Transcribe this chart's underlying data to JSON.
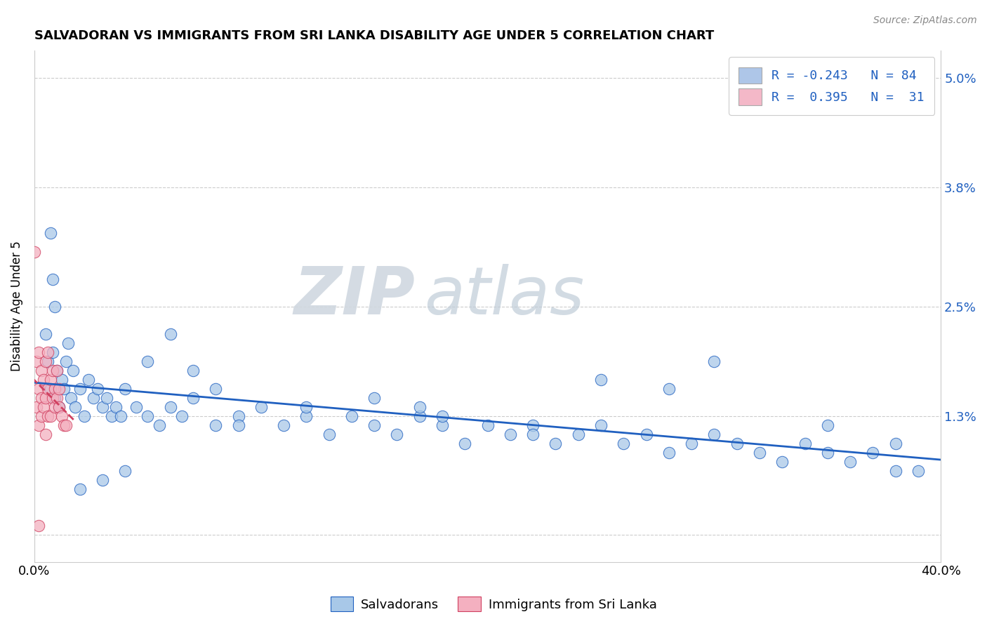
{
  "title": "SALVADORAN VS IMMIGRANTS FROM SRI LANKA DISABILITY AGE UNDER 5 CORRELATION CHART",
  "source_text": "Source: ZipAtlas.com",
  "ylabel": "Disability Age Under 5",
  "watermark_zip": "ZIP",
  "watermark_atlas": "atlas",
  "xmin": 0.0,
  "xmax": 0.4,
  "ymin": -0.003,
  "ymax": 0.053,
  "ytick_vals": [
    0.0,
    0.013,
    0.025,
    0.038,
    0.05
  ],
  "ytick_labels_right": [
    "",
    "1.3%",
    "2.5%",
    "3.8%",
    "5.0%"
  ],
  "xtick_vals": [
    0.0,
    0.4
  ],
  "xtick_labels": [
    "0.0%",
    "40.0%"
  ],
  "legend_R1": "-0.243",
  "legend_N1": "84",
  "legend_R2": " 0.395",
  "legend_N2": " 31",
  "legend_color1": "#aec6e8",
  "legend_color2": "#f4b8c8",
  "legend_labels": [
    "Salvadorans",
    "Immigrants from Sri Lanka"
  ],
  "salvadoran_color": "#a8c8e8",
  "srilanka_color": "#f4b0c0",
  "trendline_blue": "#2060c0",
  "trendline_pink": "#d04060",
  "blue_x": [
    0.005,
    0.006,
    0.007,
    0.008,
    0.009,
    0.01,
    0.011,
    0.012,
    0.013,
    0.014,
    0.015,
    0.016,
    0.017,
    0.018,
    0.02,
    0.022,
    0.024,
    0.026,
    0.028,
    0.03,
    0.032,
    0.034,
    0.036,
    0.038,
    0.04,
    0.045,
    0.05,
    0.055,
    0.06,
    0.065,
    0.07,
    0.08,
    0.09,
    0.1,
    0.11,
    0.12,
    0.13,
    0.14,
    0.15,
    0.16,
    0.17,
    0.18,
    0.19,
    0.2,
    0.21,
    0.22,
    0.23,
    0.24,
    0.25,
    0.26,
    0.27,
    0.28,
    0.29,
    0.3,
    0.31,
    0.32,
    0.33,
    0.34,
    0.35,
    0.36,
    0.37,
    0.38,
    0.39,
    0.007,
    0.008,
    0.009,
    0.05,
    0.06,
    0.07,
    0.08,
    0.25,
    0.28,
    0.3,
    0.35,
    0.38,
    0.15,
    0.18,
    0.22,
    0.12,
    0.09,
    0.04,
    0.03,
    0.02,
    0.17
  ],
  "blue_y": [
    0.022,
    0.019,
    0.016,
    0.02,
    0.015,
    0.018,
    0.014,
    0.017,
    0.016,
    0.019,
    0.021,
    0.015,
    0.018,
    0.014,
    0.016,
    0.013,
    0.017,
    0.015,
    0.016,
    0.014,
    0.015,
    0.013,
    0.014,
    0.013,
    0.016,
    0.014,
    0.013,
    0.012,
    0.014,
    0.013,
    0.015,
    0.012,
    0.013,
    0.014,
    0.012,
    0.013,
    0.011,
    0.013,
    0.012,
    0.011,
    0.013,
    0.012,
    0.01,
    0.012,
    0.011,
    0.012,
    0.01,
    0.011,
    0.012,
    0.01,
    0.011,
    0.009,
    0.01,
    0.011,
    0.01,
    0.009,
    0.008,
    0.01,
    0.009,
    0.008,
    0.009,
    0.007,
    0.007,
    0.033,
    0.028,
    0.025,
    0.019,
    0.022,
    0.018,
    0.016,
    0.017,
    0.016,
    0.019,
    0.012,
    0.01,
    0.015,
    0.013,
    0.011,
    0.014,
    0.012,
    0.007,
    0.006,
    0.005,
    0.014
  ],
  "pink_x": [
    0.0,
    0.001,
    0.001,
    0.002,
    0.002,
    0.002,
    0.003,
    0.003,
    0.003,
    0.004,
    0.004,
    0.005,
    0.005,
    0.005,
    0.006,
    0.006,
    0.006,
    0.007,
    0.007,
    0.008,
    0.008,
    0.009,
    0.009,
    0.01,
    0.01,
    0.011,
    0.011,
    0.012,
    0.013,
    0.014,
    0.002
  ],
  "pink_y": [
    0.031,
    0.014,
    0.019,
    0.012,
    0.016,
    0.02,
    0.013,
    0.015,
    0.018,
    0.014,
    0.017,
    0.011,
    0.015,
    0.019,
    0.013,
    0.016,
    0.02,
    0.013,
    0.017,
    0.015,
    0.018,
    0.014,
    0.016,
    0.015,
    0.018,
    0.014,
    0.016,
    0.013,
    0.012,
    0.012,
    0.001
  ]
}
